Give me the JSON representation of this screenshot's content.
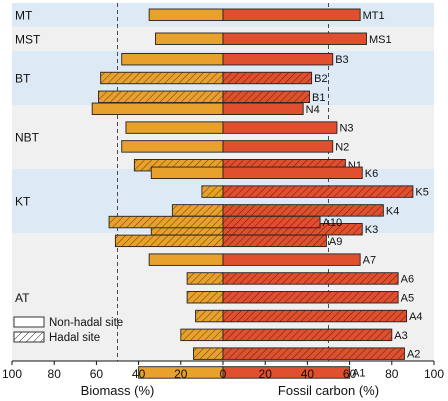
{
  "chart_data": {
    "type": "bar",
    "subtype": "diverging-horizontal",
    "left_axis_label": "Biomass (%)",
    "right_axis_label": "Fossil carbon (%)",
    "left_ticks": [
      "100",
      "80",
      "60",
      "40",
      "20",
      "0"
    ],
    "right_ticks": [
      "0",
      "20",
      "40",
      "60",
      "80",
      "100"
    ],
    "xlim": [
      -100,
      100
    ],
    "reference_lines": [
      -50,
      50
    ],
    "colors": {
      "biomass": "#E8A12C",
      "fossil": "#E0502F",
      "band_shaded": "#DDEAF5",
      "band_plain": "#F0F0F0"
    },
    "legend": [
      {
        "label": "Non-hadal site",
        "hatched": false
      },
      {
        "label": "Hadal site",
        "hatched": true
      }
    ],
    "groups": [
      {
        "name": "MT",
        "shaded": true,
        "samples": [
          {
            "label": "MT1",
            "biomass": 35,
            "fossil": 65,
            "hadal": false
          }
        ]
      },
      {
        "name": "MST",
        "shaded": false,
        "samples": [
          {
            "label": "MS1",
            "biomass": 32,
            "fossil": 68,
            "hadal": false
          }
        ]
      },
      {
        "name": "BT",
        "shaded": true,
        "samples": [
          {
            "label": "B3",
            "biomass": 48,
            "fossil": 52,
            "hadal": false
          },
          {
            "label": "B2",
            "biomass": 58,
            "fossil": 42,
            "hadal": true
          },
          {
            "label": "B1",
            "biomass": 59,
            "fossil": 41,
            "hadal": true
          }
        ]
      },
      {
        "name": "NBT",
        "shaded": false,
        "samples": [
          {
            "label": "N4",
            "biomass": 62,
            "fossil": 38,
            "hadal": false
          },
          {
            "label": "N3",
            "biomass": 46,
            "fossil": 54,
            "hadal": false
          },
          {
            "label": "N2",
            "biomass": 48,
            "fossil": 52,
            "hadal": false
          },
          {
            "label": "N1",
            "biomass": 42,
            "fossil": 58,
            "hadal": true
          }
        ]
      },
      {
        "name": "KT",
        "shaded": true,
        "samples": [
          {
            "label": "K6",
            "biomass": 34,
            "fossil": 66,
            "hadal": false
          },
          {
            "label": "K5",
            "biomass": 10,
            "fossil": 90,
            "hadal": true
          },
          {
            "label": "K4",
            "biomass": 24,
            "fossil": 76,
            "hadal": true
          },
          {
            "label": "K3",
            "biomass": 34,
            "fossil": 66,
            "hadal": true
          }
        ]
      },
      {
        "name": "AT",
        "shaded": false,
        "samples": [
          {
            "label": "A10",
            "biomass": 54,
            "fossil": 46,
            "hadal": true
          },
          {
            "label": "A9",
            "biomass": 51,
            "fossil": 49,
            "hadal": true
          },
          {
            "label": "A7",
            "biomass": 35,
            "fossil": 65,
            "hadal": false
          },
          {
            "label": "A6",
            "biomass": 17,
            "fossil": 83,
            "hadal": true
          },
          {
            "label": "A5",
            "biomass": 17,
            "fossil": 83,
            "hadal": true
          },
          {
            "label": "A4",
            "biomass": 13,
            "fossil": 87,
            "hadal": true
          },
          {
            "label": "A3",
            "biomass": 20,
            "fossil": 80,
            "hadal": true
          },
          {
            "label": "A2",
            "biomass": 14,
            "fossil": 86,
            "hadal": true
          },
          {
            "label": "A1",
            "biomass": 40,
            "fossil": 60,
            "hadal": false
          }
        ]
      }
    ]
  }
}
